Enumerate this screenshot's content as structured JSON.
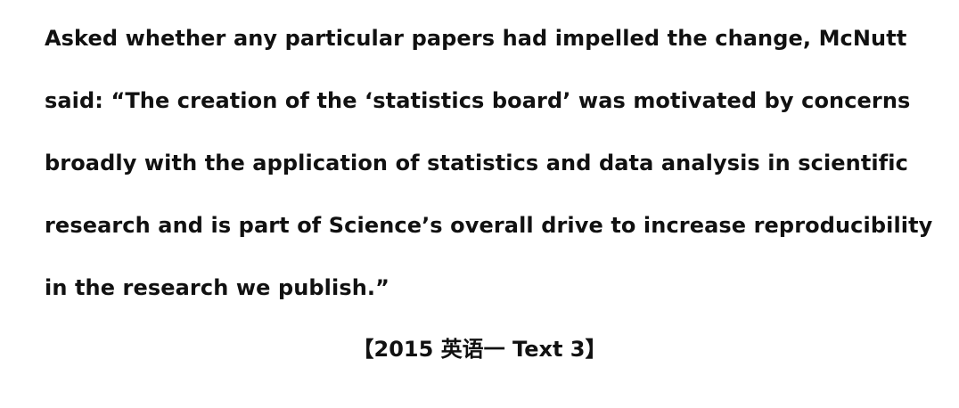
{
  "document": {
    "lines": [
      "Asked whether any particular papers had impelled the change, McNutt",
      "said: “The creation of the ‘statistics board’ was motivated by concerns",
      "broadly with the application of statistics and data analysis in scientific",
      "research and is part of Science’s overall drive to increase reproducibility",
      "in the research we publish.”"
    ],
    "source": "【2015 英语一 Text 3】"
  }
}
